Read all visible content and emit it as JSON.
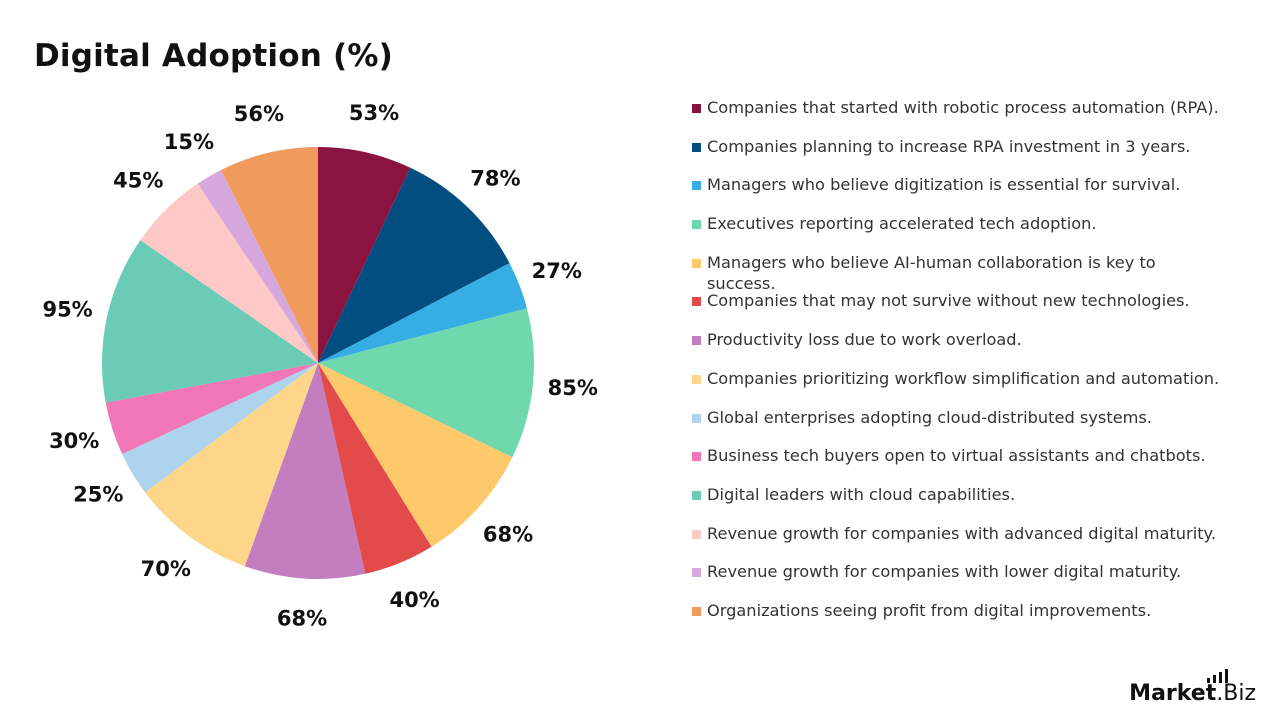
{
  "title": "Digital Adoption (%)",
  "logo": {
    "brand_bold": "Market",
    "brand_light": ".Biz"
  },
  "chart_data": {
    "type": "pie",
    "title": "Digital Adoption (%)",
    "legend_position": "right",
    "slices": [
      {
        "label": "Companies that started with robotic process automation (RPA).",
        "value": 53,
        "display": "53%",
        "color": "#8B1340"
      },
      {
        "label": "Companies planning to increase RPA investment in 3 years.",
        "value": 78,
        "display": "78%",
        "color": "#034E80"
      },
      {
        "label": "Managers who believe digitization is essential for survival.",
        "value": 27,
        "display": "27%",
        "color": "#36ADE5"
      },
      {
        "label": "Executives reporting accelerated tech adoption.",
        "value": 85,
        "display": "85%",
        "color": "#6FD8AC"
      },
      {
        "label": "Managers who believe AI-human collaboration is key to success.",
        "value": 68,
        "display": "68%",
        "color": "#FDC96B"
      },
      {
        "label": "Companies that may not survive without new technologies.",
        "value": 40,
        "display": "40%",
        "color": "#E34B4B"
      },
      {
        "label": "Productivity loss due to work overload.",
        "value": 68,
        "display": "68%",
        "color": "#C27EBF"
      },
      {
        "label": "Companies prioritizing workflow simplification and automation.",
        "value": 70,
        "display": "70%",
        "color": "#FED689"
      },
      {
        "label": "Global enterprises adopting cloud-distributed systems.",
        "value": 25,
        "display": "25%",
        "color": "#AED3EC"
      },
      {
        "label": "Business tech buyers open to virtual assistants and chatbots.",
        "value": 30,
        "display": "30%",
        "color": "#F177B8"
      },
      {
        "label": "Digital leaders with cloud capabilities.",
        "value": 95,
        "display": "95%",
        "color": "#6ACBB7"
      },
      {
        "label": "Revenue growth for companies with advanced digital maturity.",
        "value": 45,
        "display": "45%",
        "color": "#FEC8C7"
      },
      {
        "label": "Revenue growth for companies with lower digital maturity.",
        "value": 15,
        "display": "15%",
        "color": "#D6A8DD"
      },
      {
        "label": "Organizations seeing profit from digital improvements.",
        "value": 56,
        "display": "56%",
        "color": "#F09A5D"
      }
    ]
  }
}
